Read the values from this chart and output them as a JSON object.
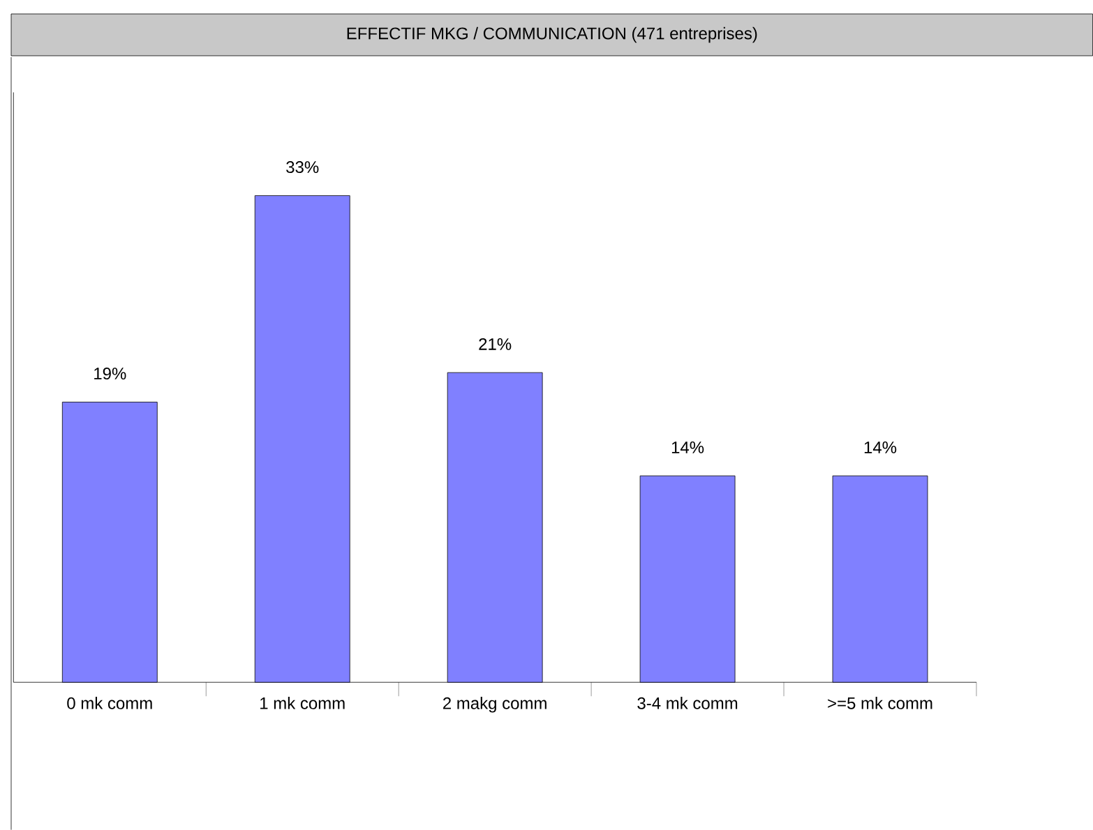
{
  "chart_data": {
    "type": "bar",
    "title": "EFFECTIF MKG / COMMUNICATION (471 entreprises)",
    "categories": [
      "0 mk comm",
      "1 mk comm",
      "2 makg comm",
      "3-4 mk comm",
      ">=5 mk comm"
    ],
    "values": [
      19,
      33,
      21,
      14,
      14
    ],
    "value_labels": [
      "19%",
      "33%",
      "21%",
      "14%",
      "14%"
    ],
    "color": "#8080ff",
    "ylim": [
      0,
      40
    ],
    "tick_labels": "x",
    "grid": false
  }
}
